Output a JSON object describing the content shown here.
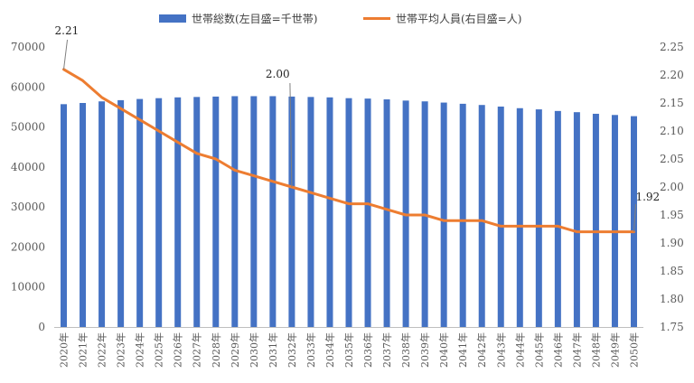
{
  "chart_data": {
    "type": "bar+line",
    "categories": [
      "2020年",
      "2021年",
      "2022年",
      "2023年",
      "2024年",
      "2025年",
      "2026年",
      "2027年",
      "2028年",
      "2029年",
      "2030年",
      "2031年",
      "2032年",
      "2033年",
      "2034年",
      "2035年",
      "2036年",
      "2037年",
      "2038年",
      "2039年",
      "2040年",
      "2041年",
      "2042年",
      "2043年",
      "2044年",
      "2045年",
      "2046年",
      "2047年",
      "2048年",
      "2049年",
      "2050年"
    ],
    "series": [
      {
        "name": "世帯総数(左目盛=千世帯)",
        "type": "bar",
        "axis": "left",
        "color": "#4472C4",
        "values": [
          55700,
          56000,
          56400,
          56700,
          57000,
          57200,
          57400,
          57500,
          57600,
          57700,
          57700,
          57700,
          57600,
          57500,
          57400,
          57200,
          57100,
          56900,
          56600,
          56400,
          56100,
          55800,
          55500,
          55100,
          54700,
          54400,
          54000,
          53700,
          53300,
          53000,
          52700
        ]
      },
      {
        "name": "世帯平均人員(右目盛=人)",
        "type": "line",
        "axis": "right",
        "color": "#ED7D31",
        "values": [
          2.21,
          2.19,
          2.16,
          2.14,
          2.12,
          2.1,
          2.08,
          2.06,
          2.05,
          2.03,
          2.02,
          2.01,
          2.0,
          1.99,
          1.98,
          1.97,
          1.97,
          1.96,
          1.95,
          1.95,
          1.94,
          1.94,
          1.94,
          1.93,
          1.93,
          1.93,
          1.93,
          1.92,
          1.92,
          1.92,
          1.92
        ]
      }
    ],
    "y_left": {
      "range": [
        0,
        70000
      ],
      "ticks": [
        "0",
        "10000",
        "20000",
        "30000",
        "40000",
        "50000",
        "60000",
        "70000"
      ],
      "tick_values": [
        0,
        10000,
        20000,
        30000,
        40000,
        50000,
        60000,
        70000
      ]
    },
    "y_right": {
      "range": [
        1.75,
        2.25
      ],
      "ticks": [
        "1.75",
        "1.80",
        "1.85",
        "1.90",
        "1.95",
        "2.00",
        "2.05",
        "2.10",
        "2.15",
        "2.20",
        "2.25"
      ],
      "tick_values": [
        1.75,
        1.8,
        1.85,
        1.9,
        1.95,
        2.0,
        2.05,
        2.1,
        2.15,
        2.2,
        2.25
      ]
    },
    "annotations": [
      {
        "label": "2.21",
        "index": 0
      },
      {
        "label": "2.00",
        "index": 12
      },
      {
        "label": "1.92",
        "index": 30
      }
    ],
    "legend_position": "top-center",
    "grid": false
  }
}
